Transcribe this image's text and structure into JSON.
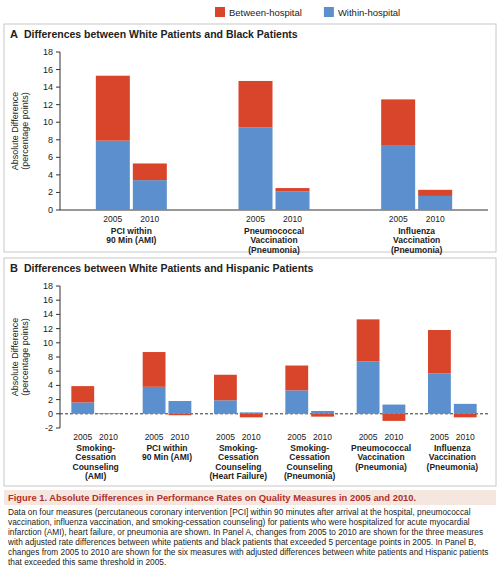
{
  "caption": {
    "title": "Figure 1. Absolute Differences in Performance Rates on Quality Measures in 2005 and 2010.",
    "text": "Data on four measures (percutaneous coronary intervention [PCI] within 90 minutes after arrival at the hospital, pneumococcal vaccination, influenza vaccination, and smoking-cessation counseling) for patients who were hospitalized for acute myocardial infarction (AMI), heart failure, or pneumonia are shown. In Panel A, changes from 2005 to 2010 are shown for the three measures with adjusted rate differences between white patients and black patients that exceeded 5 percentage points in 2005. In Panel B, changes from 2005 to 2010 are shown for the six measures with adjusted differences between white patients and Hispanic patients that exceeded this same threshold in 2005."
  },
  "chart_data": [
    {
      "type": "bar",
      "stacked": true,
      "panel": "A",
      "title": "Differences between White Patients and Black Patients",
      "y_label": [
        "Absolute Difference",
        "(percentage points)"
      ],
      "categories": [
        "2005",
        "2010",
        "2005",
        "2010",
        "2005",
        "2010"
      ],
      "groups": [
        [
          "PCI within",
          "90 Min (AMI)"
        ],
        [
          "Pneumococcal",
          "Vaccination",
          "(Pneumonia)"
        ],
        [
          "Influenza",
          "Vaccination",
          "(Pneumonia)"
        ]
      ],
      "series": [
        {
          "name": "Within-hospital",
          "color": "#5b8fcd",
          "values": [
            7.9,
            3.4,
            9.4,
            2.1,
            7.4,
            1.6
          ]
        },
        {
          "name": "Between-hospital",
          "color": "#d9452b",
          "values": [
            7.4,
            1.9,
            5.3,
            0.4,
            5.2,
            0.7
          ]
        }
      ],
      "ylim": [
        0,
        18
      ],
      "yticks": [
        0,
        2,
        4,
        6,
        8,
        10,
        12,
        14,
        16,
        18
      ],
      "grid": false,
      "legend": "top"
    },
    {
      "type": "bar",
      "stacked": true,
      "panel": "B",
      "title": "Differences between White Patients and Hispanic Patients",
      "y_label": [
        "Absolute Difference",
        "(percentage points)"
      ],
      "categories": [
        "2005",
        "2010",
        "2005",
        "2010",
        "2005",
        "2010",
        "2005",
        "2010",
        "2005",
        "2010",
        "2005",
        "2010"
      ],
      "groups": [
        [
          "Smoking-",
          "Cessation",
          "Counseling",
          "(AMI)"
        ],
        [
          "PCI within",
          "90 Min (AMI)"
        ],
        [
          "Smoking-",
          "Cessation",
          "Counseling",
          "(Heart Failure)"
        ],
        [
          "Smoking-",
          "Cessation",
          "Counseling",
          "(Pneumonia)"
        ],
        [
          "Pneumococcal",
          "Vaccination",
          "(Pneumonia)"
        ],
        [
          "Influenza",
          "Vaccination",
          "(Pneumonia)"
        ]
      ],
      "series": [
        {
          "name": "Within-hospital",
          "color": "#5b8fcd",
          "values": [
            1.6,
            0.1,
            3.8,
            1.8,
            1.9,
            0.2,
            3.3,
            0.4,
            7.4,
            1.3,
            5.7,
            1.4
          ]
        },
        {
          "name": "Between-hospital",
          "color": "#d9452b",
          "values": [
            2.3,
            0,
            4.9,
            -0.2,
            3.6,
            -0.5,
            3.5,
            -0.4,
            5.9,
            -1.0,
            6.1,
            -0.5
          ]
        }
      ],
      "ylim": [
        -2,
        18
      ],
      "yticks": [
        -2,
        0,
        2,
        4,
        6,
        8,
        10,
        12,
        14,
        16,
        18
      ],
      "grid": false
    }
  ]
}
